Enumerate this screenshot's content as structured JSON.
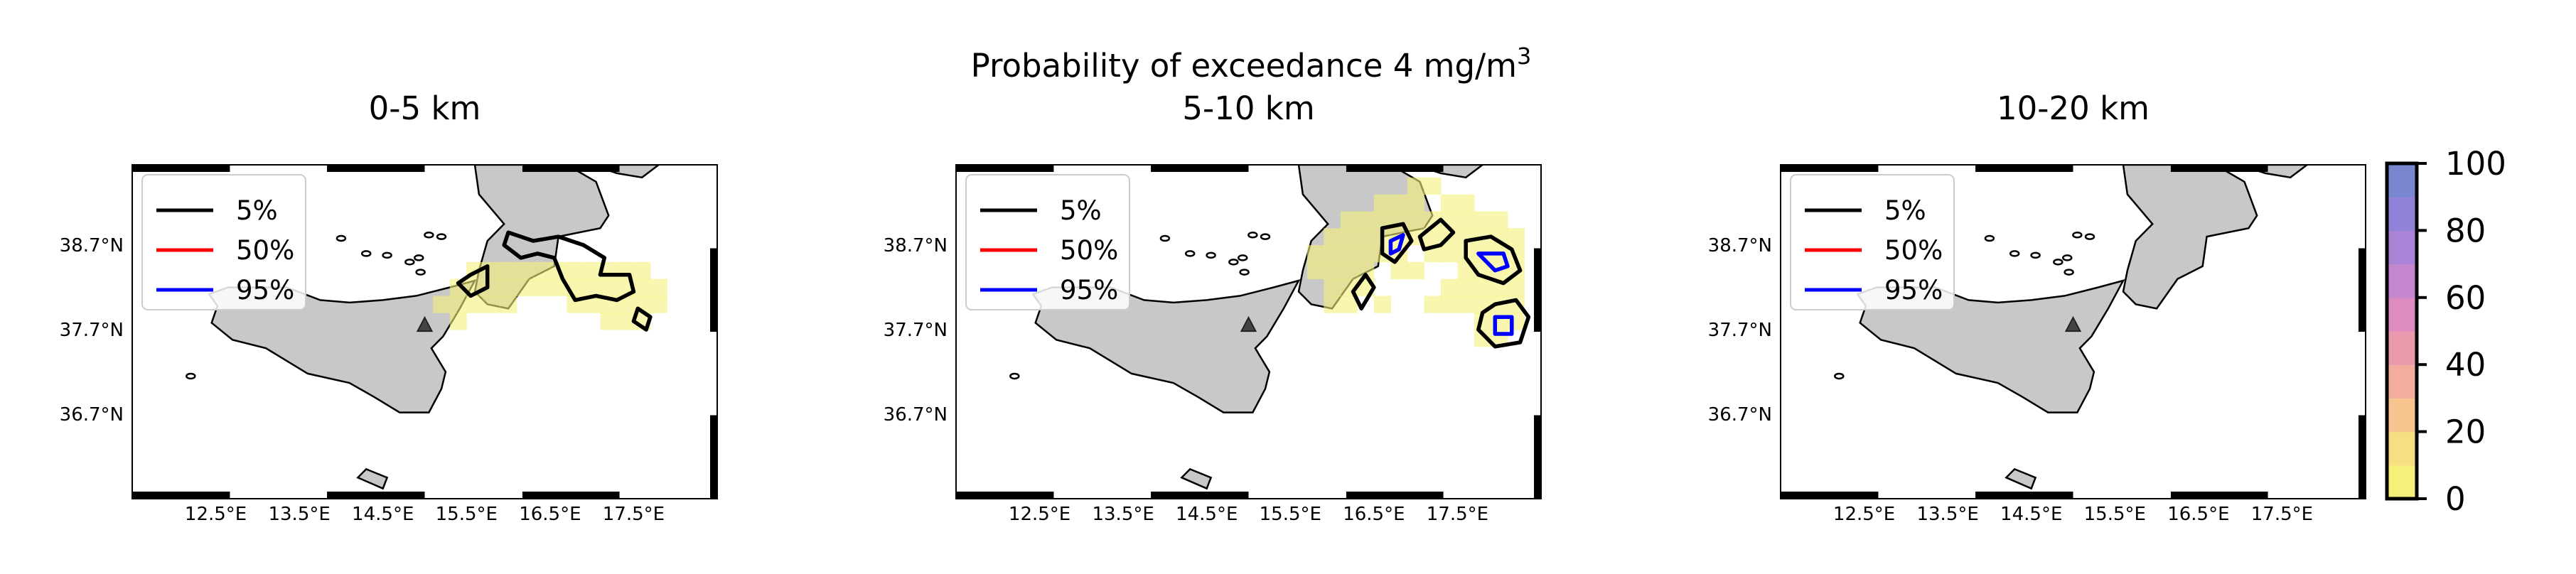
{
  "figure": {
    "suptitle_main": "Probability of exceedance 4 mg/m",
    "suptitle_sup": "3"
  },
  "legend": {
    "entries": [
      {
        "label": "5%",
        "color": "#000000"
      },
      {
        "label": "50%",
        "color": "#ff0000"
      },
      {
        "label": "95%",
        "color": "#0000ff"
      }
    ]
  },
  "colorbar": {
    "ticks": [
      "0",
      "20",
      "40",
      "60",
      "80",
      "100"
    ],
    "range": [
      0,
      100
    ],
    "colors": [
      "#f5f07a",
      "#f7de82",
      "#f6c58f",
      "#f2ad9e",
      "#eb9aae",
      "#dc8cc0",
      "#c487cf",
      "#a983d6",
      "#8f83d9",
      "#7a86cf"
    ]
  },
  "axes": {
    "x_ticks": [
      "12.5°E",
      "13.5°E",
      "14.5°E",
      "15.5°E",
      "16.5°E",
      "17.5°E"
    ],
    "y_ticks": [
      "38.7°N",
      "37.7°N",
      "36.7°N"
    ],
    "xlim": [
      11.5,
      18.5
    ],
    "ylim": [
      35.7,
      39.65
    ]
  },
  "vent": {
    "lon": 15.0,
    "lat": 37.75,
    "symbol": "triangle"
  },
  "chart_data": [
    {
      "type": "heatmap",
      "title": "0-5 km",
      "units": "probability (%)",
      "cell_size_deg": 0.2,
      "cells": [
        [
          15.6,
          38.4
        ],
        [
          15.8,
          38.4
        ],
        [
          16.0,
          38.4
        ],
        [
          16.2,
          38.4
        ],
        [
          16.4,
          38.4
        ],
        [
          16.6,
          38.4
        ],
        [
          16.8,
          38.4
        ],
        [
          17.0,
          38.4
        ],
        [
          17.2,
          38.4
        ],
        [
          17.4,
          38.4
        ],
        [
          17.6,
          38.4
        ],
        [
          15.4,
          38.2
        ],
        [
          15.6,
          38.2
        ],
        [
          15.8,
          38.2
        ],
        [
          16.0,
          38.2
        ],
        [
          16.2,
          38.2
        ],
        [
          16.4,
          38.2
        ],
        [
          16.6,
          38.2
        ],
        [
          16.8,
          38.2
        ],
        [
          17.0,
          38.2
        ],
        [
          17.2,
          38.2
        ],
        [
          17.4,
          38.2
        ],
        [
          17.6,
          38.2
        ],
        [
          17.8,
          38.2
        ],
        [
          15.2,
          38.0
        ],
        [
          15.4,
          38.0
        ],
        [
          15.6,
          38.0
        ],
        [
          15.8,
          38.0
        ],
        [
          16.0,
          38.0
        ],
        [
          16.8,
          38.0
        ],
        [
          17.0,
          38.0
        ],
        [
          17.2,
          38.0
        ],
        [
          17.4,
          38.0
        ],
        [
          17.6,
          38.0
        ],
        [
          17.8,
          38.0
        ],
        [
          15.4,
          37.8
        ],
        [
          17.2,
          37.8
        ],
        [
          17.4,
          37.8
        ],
        [
          17.6,
          37.8
        ]
      ],
      "contours": {
        "p5": [
          [
            [
              16.0,
              38.85
            ],
            [
              16.3,
              38.75
            ],
            [
              16.6,
              38.8
            ],
            [
              16.9,
              38.7
            ],
            [
              17.15,
              38.55
            ],
            [
              17.1,
              38.35
            ],
            [
              17.45,
              38.35
            ],
            [
              17.5,
              38.15
            ],
            [
              17.3,
              38.05
            ],
            [
              17.05,
              38.1
            ],
            [
              16.8,
              38.05
            ],
            [
              16.65,
              38.3
            ],
            [
              16.55,
              38.55
            ],
            [
              16.35,
              38.6
            ],
            [
              16.15,
              38.55
            ],
            [
              15.95,
              38.7
            ]
          ],
          [
            [
              15.55,
              38.35
            ],
            [
              15.75,
              38.45
            ],
            [
              15.75,
              38.2
            ],
            [
              15.55,
              38.1
            ],
            [
              15.4,
              38.25
            ]
          ],
          [
            [
              17.55,
              37.95
            ],
            [
              17.7,
              37.85
            ],
            [
              17.65,
              37.7
            ],
            [
              17.5,
              37.8
            ]
          ]
        ],
        "p50": [],
        "p95": []
      }
    },
    {
      "type": "heatmap",
      "title": "5-10 km",
      "units": "probability (%)",
      "cell_size_deg": 0.2,
      "cells": [
        [
          17.0,
          39.4
        ],
        [
          17.2,
          39.4
        ],
        [
          16.6,
          39.2
        ],
        [
          16.8,
          39.2
        ],
        [
          17.0,
          39.2
        ],
        [
          17.4,
          39.2
        ],
        [
          17.6,
          39.2
        ],
        [
          16.2,
          39.0
        ],
        [
          16.4,
          39.0
        ],
        [
          16.6,
          39.0
        ],
        [
          16.8,
          39.0
        ],
        [
          17.0,
          39.0
        ],
        [
          17.2,
          39.0
        ],
        [
          17.4,
          39.0
        ],
        [
          17.6,
          39.0
        ],
        [
          17.8,
          39.0
        ],
        [
          18.0,
          39.0
        ],
        [
          16.0,
          38.8
        ],
        [
          16.2,
          38.8
        ],
        [
          16.4,
          38.8
        ],
        [
          16.6,
          38.8
        ],
        [
          16.8,
          38.8
        ],
        [
          17.0,
          38.8
        ],
        [
          17.2,
          38.8
        ],
        [
          17.4,
          38.8
        ],
        [
          17.6,
          38.8
        ],
        [
          17.8,
          38.8
        ],
        [
          18.0,
          38.8
        ],
        [
          18.2,
          38.8
        ],
        [
          15.8,
          38.6
        ],
        [
          16.0,
          38.6
        ],
        [
          16.2,
          38.6
        ],
        [
          16.4,
          38.6
        ],
        [
          16.6,
          38.6
        ],
        [
          16.8,
          38.6
        ],
        [
          17.2,
          38.6
        ],
        [
          17.4,
          38.6
        ],
        [
          17.6,
          38.6
        ],
        [
          17.8,
          38.6
        ],
        [
          18.0,
          38.6
        ],
        [
          18.2,
          38.6
        ],
        [
          15.8,
          38.4
        ],
        [
          16.0,
          38.4
        ],
        [
          16.2,
          38.4
        ],
        [
          16.4,
          38.4
        ],
        [
          16.8,
          38.4
        ],
        [
          17.0,
          38.4
        ],
        [
          17.6,
          38.4
        ],
        [
          17.8,
          38.4
        ],
        [
          18.0,
          38.4
        ],
        [
          18.2,
          38.4
        ],
        [
          16.0,
          38.2
        ],
        [
          16.2,
          38.2
        ],
        [
          16.4,
          38.2
        ],
        [
          17.4,
          38.2
        ],
        [
          17.6,
          38.2
        ],
        [
          17.8,
          38.2
        ],
        [
          18.0,
          38.2
        ],
        [
          18.2,
          38.2
        ],
        [
          16.0,
          38.0
        ],
        [
          16.2,
          38.0
        ],
        [
          16.6,
          38.0
        ],
        [
          17.2,
          38.0
        ],
        [
          17.4,
          38.0
        ],
        [
          17.6,
          38.0
        ],
        [
          17.8,
          38.0
        ],
        [
          18.0,
          38.0
        ],
        [
          18.2,
          38.0
        ],
        [
          17.8,
          37.8
        ],
        [
          18.0,
          37.8
        ],
        [
          18.2,
          37.8
        ],
        [
          17.8,
          37.6
        ],
        [
          18.0,
          37.6
        ]
      ],
      "contours": {
        "p5": [
          [
            [
              16.6,
              38.9
            ],
            [
              16.85,
              38.95
            ],
            [
              16.95,
              38.75
            ],
            [
              16.75,
              38.5
            ],
            [
              16.6,
              38.6
            ]
          ],
          [
            [
              17.05,
              38.8
            ],
            [
              17.3,
              39.0
            ],
            [
              17.45,
              38.85
            ],
            [
              17.3,
              38.7
            ],
            [
              17.1,
              38.65
            ]
          ],
          [
            [
              17.6,
              38.75
            ],
            [
              17.9,
              38.8
            ],
            [
              18.15,
              38.65
            ],
            [
              18.25,
              38.4
            ],
            [
              18.05,
              38.25
            ],
            [
              17.75,
              38.35
            ],
            [
              17.6,
              38.55
            ]
          ],
          [
            [
              16.25,
              38.15
            ],
            [
              16.4,
              38.35
            ],
            [
              16.5,
              38.2
            ],
            [
              16.35,
              37.95
            ]
          ],
          [
            [
              17.95,
              38.0
            ],
            [
              18.2,
              38.05
            ],
            [
              18.35,
              37.85
            ],
            [
              18.25,
              37.55
            ],
            [
              17.95,
              37.5
            ],
            [
              17.75,
              37.7
            ],
            [
              17.8,
              37.9
            ]
          ]
        ],
        "p50": [],
        "p95": [
          [
            [
              16.7,
              38.75
            ],
            [
              16.85,
              38.82
            ],
            [
              16.8,
              38.65
            ],
            [
              16.7,
              38.6
            ]
          ],
          [
            [
              17.75,
              38.6
            ],
            [
              18.05,
              38.6
            ],
            [
              18.1,
              38.45
            ],
            [
              17.95,
              38.4
            ]
          ],
          [
            [
              17.95,
              37.85
            ],
            [
              18.15,
              37.85
            ],
            [
              18.15,
              37.65
            ],
            [
              17.95,
              37.65
            ]
          ]
        ]
      }
    },
    {
      "type": "heatmap",
      "title": "10-20 km",
      "units": "probability (%)",
      "cell_size_deg": 0.2,
      "cells": [],
      "contours": {
        "p5": [],
        "p50": [],
        "p95": []
      }
    }
  ]
}
